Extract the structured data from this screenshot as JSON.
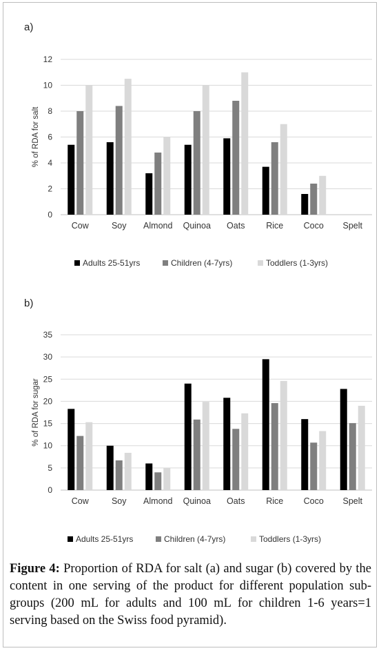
{
  "figure": {
    "label": "Figure 4:",
    "caption": "Proportion of RDA for salt (a) and sugar (b) covered by the content in one serving of the product for different population sub-groups (200 mL for adults and 100 mL for children 1-6 years=1 serving based on the Swiss food pyramid)."
  },
  "colors": {
    "adults": "#000000",
    "children": "#7f7f7f",
    "toddlers": "#d9d9d9",
    "grid": "#d9d9d9"
  },
  "chart_data": [
    {
      "type": "bar",
      "panel": "a)",
      "ylabel": "% of RDA for salt",
      "ylim": [
        0,
        12
      ],
      "yticks": [
        0,
        2,
        4,
        6,
        8,
        10,
        12
      ],
      "grid": true,
      "legend_position": "bottom",
      "categories": [
        "Cow",
        "Soy",
        "Almond",
        "Quinoa",
        "Oats",
        "Rice",
        "Coco",
        "Spelt"
      ],
      "series": [
        {
          "name": "Adults 25-51yrs",
          "color": "#000000",
          "values": [
            5.4,
            5.6,
            3.2,
            5.4,
            5.9,
            3.7,
            1.6,
            0
          ]
        },
        {
          "name": "Children (4-7yrs)",
          "color": "#7f7f7f",
          "values": [
            8.0,
            8.4,
            4.8,
            8.0,
            8.8,
            5.6,
            2.4,
            0
          ]
        },
        {
          "name": "Toddlers (1-3yrs)",
          "color": "#d9d9d9",
          "values": [
            10.0,
            10.5,
            6.0,
            10.0,
            11.0,
            7.0,
            3.0,
            0
          ]
        }
      ]
    },
    {
      "type": "bar",
      "panel": "b)",
      "ylabel": "% of RDA for sugar",
      "ylim": [
        0,
        35
      ],
      "yticks": [
        0,
        5,
        10,
        15,
        20,
        25,
        30,
        35
      ],
      "grid": true,
      "legend_position": "bottom",
      "categories": [
        "Cow",
        "Soy",
        "Almond",
        "Quinoa",
        "Oats",
        "Rice",
        "Coco",
        "Spelt"
      ],
      "series": [
        {
          "name": "Adults 25-51yrs",
          "color": "#000000",
          "values": [
            18.3,
            10.0,
            6.0,
            24.0,
            20.8,
            29.5,
            16.0,
            22.8
          ]
        },
        {
          "name": "Children (4-7yrs)",
          "color": "#7f7f7f",
          "values": [
            12.2,
            6.7,
            4.0,
            15.9,
            13.8,
            19.6,
            10.7,
            15.1
          ]
        },
        {
          "name": "Toddlers (1-3yrs)",
          "color": "#d9d9d9",
          "values": [
            15.3,
            8.4,
            5.0,
            19.9,
            17.3,
            24.6,
            13.3,
            19.0
          ]
        }
      ]
    }
  ]
}
